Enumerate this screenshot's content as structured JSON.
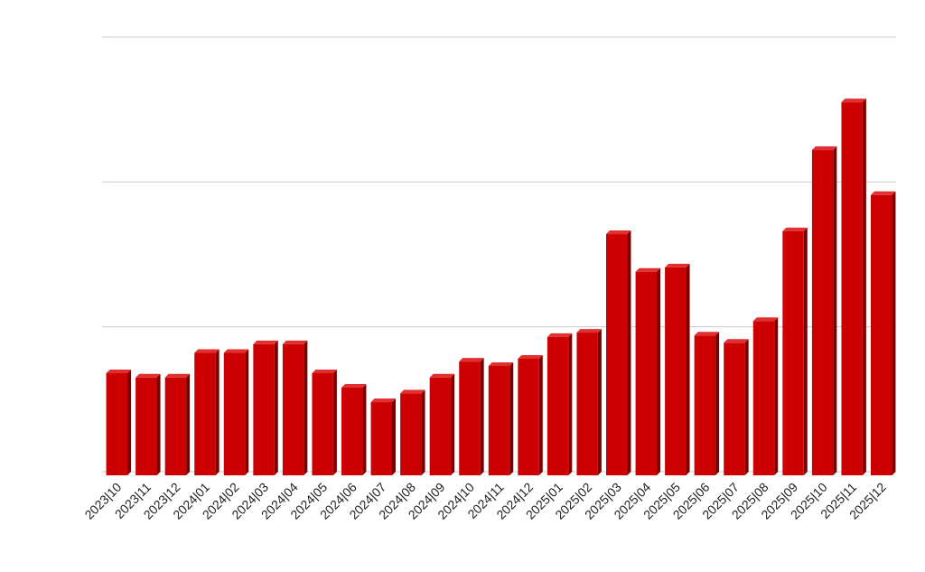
{
  "chart_data": {
    "type": "bar",
    "categories": [
      "2023|10",
      "2023|11",
      "2023|12",
      "2024|01",
      "2024|02",
      "2024|03",
      "2024|04",
      "2024|05",
      "2024|06",
      "2024|07",
      "2024|08",
      "2024|09",
      "2024|10",
      "2024|11",
      "2024|12",
      "2025|01",
      "2025|02",
      "2025|03",
      "2025|04",
      "2025|05",
      "2025|06",
      "2025|07",
      "2025|08",
      "2025|09",
      "2025|10",
      "2025|11",
      "2025|12"
    ],
    "values": [
      0.68,
      0.65,
      0.65,
      0.82,
      0.82,
      0.88,
      0.88,
      0.68,
      0.58,
      0.48,
      0.54,
      0.65,
      0.76,
      0.73,
      0.78,
      0.93,
      0.96,
      1.64,
      1.38,
      1.41,
      0.94,
      0.89,
      1.04,
      1.66,
      2.22,
      2.55,
      1.91
    ],
    "color": "#cc0000",
    "ylim": [
      0,
      3
    ],
    "yticks": [
      0,
      1,
      2,
      3
    ],
    "grid": true,
    "tick_labels": false
  }
}
